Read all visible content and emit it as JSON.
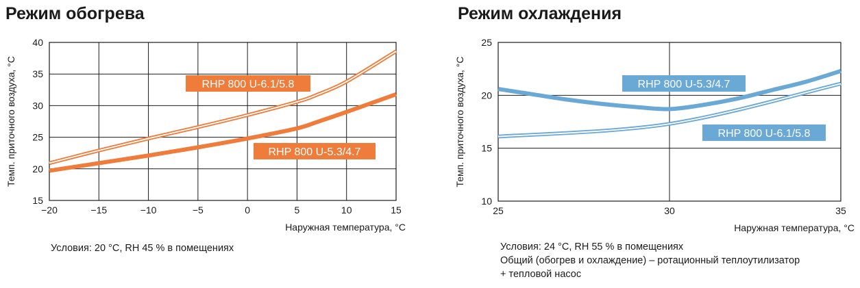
{
  "colors": {
    "heating": "#ef7c3a",
    "cooling": "#6aa8d6",
    "grid": "#1a1a1a",
    "label_text": "#ffffff"
  },
  "heating": {
    "title": "Режим обогрева",
    "note_lines": [
      "Условия: 20 °C, RH 45 % в помещениях"
    ]
  },
  "cooling": {
    "title": "Режим охлаждения",
    "note_lines": [
      "Условия: 24 °C, RH 55 % в помещениях",
      "Общий (обогрев и охлаждение) – ротационный теплоутилизатор",
      "+ тепловой насос"
    ]
  },
  "chart_data": [
    {
      "type": "line",
      "title": "Режим обогрева",
      "xlabel": "Наружная температура, °C",
      "ylabel": "Темп. приточного воздуха, °C",
      "xlim": [
        -20,
        15
      ],
      "ylim": [
        15,
        40
      ],
      "xticks": [
        -20,
        -15,
        -10,
        -5,
        0,
        5,
        10,
        15
      ],
      "yticks": [
        15,
        20,
        25,
        30,
        35,
        40
      ],
      "grid": true,
      "series": [
        {
          "name": "RHP 800 U-6.1/5.8",
          "style": "double",
          "x": [
            -20,
            -15,
            -10,
            -5,
            0,
            5,
            7,
            10,
            15
          ],
          "y": [
            20.9,
            22.9,
            24.8,
            26.6,
            28.5,
            30.6,
            31.7,
            33.8,
            38.6
          ]
        },
        {
          "name": "RHP 800 U-5.3/4.7",
          "style": "thick",
          "x": [
            -20,
            -15,
            -10,
            -5,
            0,
            5,
            7,
            10,
            15
          ],
          "y": [
            19.7,
            20.9,
            22.1,
            23.4,
            24.8,
            26.4,
            27.4,
            29.0,
            31.8
          ]
        }
      ]
    },
    {
      "type": "line",
      "title": "Режим охлаждения",
      "xlabel": "Наружная температура, °C",
      "ylabel": "Темп. приточного воздуха, °C",
      "xlim": [
        25,
        35
      ],
      "ylim": [
        10,
        25
      ],
      "xticks": [
        25,
        30,
        35
      ],
      "yticks": [
        10,
        15,
        20,
        25
      ],
      "grid": true,
      "series": [
        {
          "name": "RHP 800 U-5.3/4.7",
          "style": "thick",
          "x": [
            25,
            26,
            27,
            28,
            29,
            30,
            31,
            32,
            33,
            34,
            35
          ],
          "y": [
            20.6,
            20.1,
            19.6,
            19.2,
            18.9,
            18.7,
            19.1,
            19.7,
            20.5,
            21.3,
            22.3
          ]
        },
        {
          "name": "RHP 800 U-6.1/5.8",
          "style": "double",
          "x": [
            25,
            30,
            35
          ],
          "y": [
            16.1,
            17.3,
            21.1
          ]
        }
      ]
    }
  ]
}
